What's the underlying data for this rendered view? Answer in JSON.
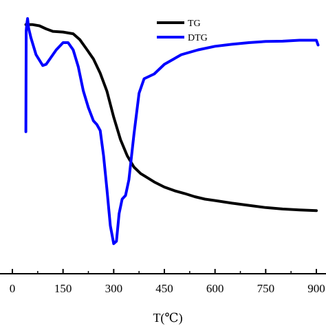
{
  "chart_data": {
    "type": "line",
    "xlabel": "T(℃)",
    "ylabel": "",
    "title": "",
    "xlim": [
      -10,
      910
    ],
    "ylim": [
      0,
      100
    ],
    "xticks": [
      0,
      150,
      300,
      450,
      600,
      750,
      900
    ],
    "grid": false,
    "legend_position": "top-right",
    "series": [
      {
        "name": "TG",
        "color": "#000000",
        "x": [
          40,
          60,
          80,
          100,
          120,
          150,
          180,
          200,
          220,
          240,
          260,
          280,
          300,
          320,
          340,
          360,
          380,
          400,
          420,
          450,
          480,
          510,
          540,
          570,
          600,
          650,
          700,
          750,
          800,
          850,
          900
        ],
        "y": [
          96.5,
          96.5,
          96.0,
          94.7,
          93.7,
          93.4,
          92.7,
          90.2,
          86.3,
          82.2,
          76.3,
          68.8,
          58.1,
          48.7,
          42.0,
          37.3,
          34.6,
          32.9,
          31.1,
          29.0,
          27.5,
          26.3,
          25.0,
          24.0,
          23.4,
          22.3,
          21.4,
          20.5,
          19.9,
          19.5,
          19.2
        ]
      },
      {
        "name": "DTG",
        "color": "#0000ff",
        "x": [
          40,
          41,
          43,
          45,
          48,
          55,
          70,
          90,
          100,
          110,
          130,
          150,
          165,
          180,
          195,
          210,
          225,
          240,
          250,
          260,
          270,
          280,
          290,
          300,
          308,
          316,
          325,
          335,
          345,
          360,
          375,
          390,
          420,
          450,
          500,
          550,
          600,
          650,
          700,
          750,
          800,
          850,
          900,
          905
        ],
        "y": [
          52,
          94,
          97,
          99,
          95,
          91,
          84,
          79.5,
          80,
          82,
          86,
          89,
          89,
          86,
          79,
          69,
          62,
          56.5,
          55,
          52.5,
          42,
          28,
          13,
          5.5,
          6.5,
          18,
          24,
          25.5,
          32,
          51,
          68,
          74,
          76,
          80,
          84,
          86,
          87.5,
          88.3,
          89,
          89.5,
          89.6,
          90,
          90,
          88
        ]
      }
    ]
  }
}
